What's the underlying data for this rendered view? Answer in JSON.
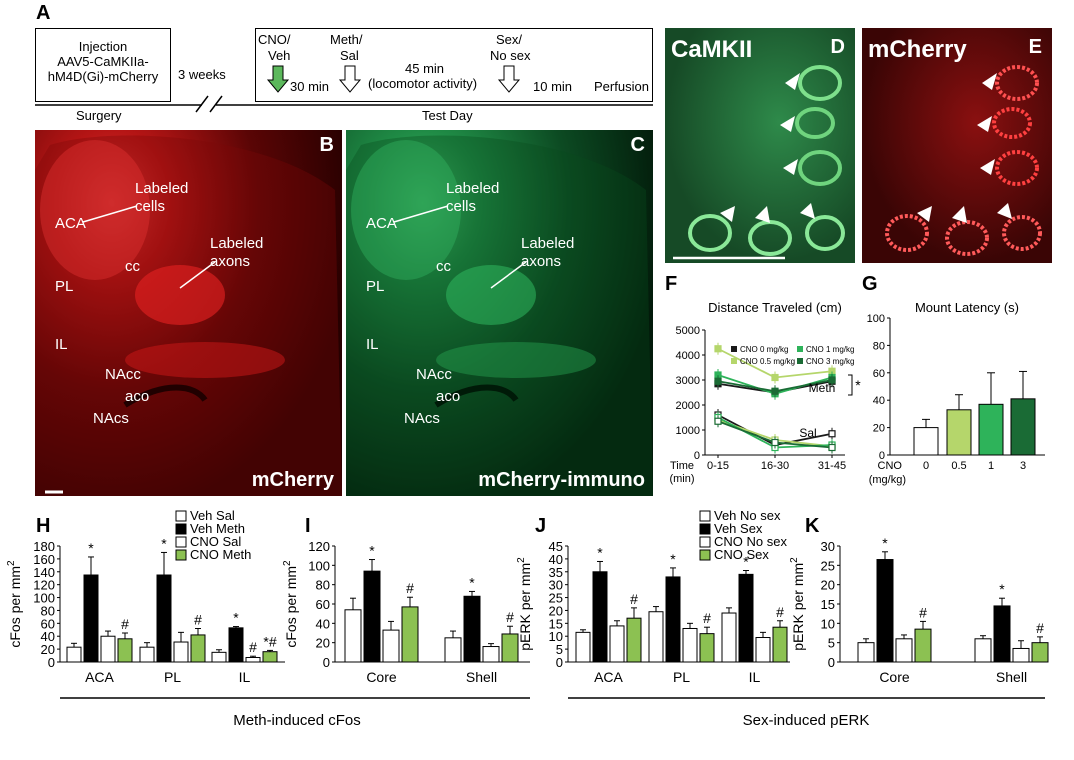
{
  "panel_letters": {
    "A": "A",
    "B": "B",
    "C": "C",
    "D": "D",
    "E": "E",
    "F": "F",
    "G": "G",
    "H": "H",
    "I": "I",
    "J": "J",
    "K": "K"
  },
  "timeline": {
    "injection_line1": "Injection",
    "injection_line2": "AAV5-CaMKIIa-",
    "injection_line3": "hM4D(Gi)-mCherry",
    "weeks": "3 weeks",
    "surgery": "Surgery",
    "test_day": "Test Day",
    "cno_line1": "CNO/",
    "cno_line2": "Veh",
    "meth_line1": "Meth/",
    "meth_line2": "Sal",
    "sex_line1": "Sex/",
    "sex_line2": "No sex",
    "min30": "30 min",
    "min45": "45 min",
    "locomotor": "(locomotor activity)",
    "min10": "10 min",
    "perfusion": "Perfusion"
  },
  "image_B": {
    "labels": {
      "labeled_cells": "Labeled\ncells",
      "labeled_axons": "Labeled\naxons",
      "aca": "ACA",
      "cc": "cc",
      "pl": "PL",
      "il": "IL",
      "nacc": "NAcc",
      "aco": "aco",
      "nacs": "NAcs"
    },
    "caption": "mCherry"
  },
  "image_C": {
    "labels": {
      "labeled_cells": "Labeled\ncells",
      "labeled_axons": "Labeled\naxons",
      "aca": "ACA",
      "cc": "cc",
      "pl": "PL",
      "il": "IL",
      "nacc": "NAcc",
      "aco": "aco",
      "nacs": "NAcs"
    },
    "caption": "mCherry-immuno"
  },
  "image_D": {
    "caption": "CaMKII"
  },
  "image_E": {
    "caption": "mCherry"
  },
  "colors": {
    "red_stain": "#c81414",
    "green_stain": "#1f9a4a",
    "black": "#000000",
    "white": "#ffffff",
    "green_bar": "#8cc152",
    "light_green": "#b5d66b",
    "mid_green": "#2eb35a",
    "dark_green": "#1a6b35"
  },
  "chart_data": [
    {
      "id": "F",
      "type": "line",
      "title": "Distance Traveled (cm)",
      "xlabel": "Time (min)",
      "x": [
        "0-15",
        "16-30",
        "31-45"
      ],
      "ylim": [
        0,
        5000
      ],
      "yticks": [
        0,
        1000,
        2000,
        3000,
        4000,
        5000
      ],
      "legend": [
        "CNO 0 mg/kg",
        "CNO 0.5 mg/kg",
        "CNO 1 mg/kg",
        "CNO 3 mg/kg"
      ],
      "annotations": [
        "Meth",
        "Sal",
        "*"
      ],
      "series": [
        {
          "name": "CNO 0 mg/kg",
          "group": "Meth",
          "values": [
            2850,
            2500,
            2950
          ],
          "color": "#1a1a1a"
        },
        {
          "name": "CNO 0.5 mg/kg",
          "group": "Meth",
          "values": [
            4250,
            3100,
            3350
          ],
          "color": "#b5d66b"
        },
        {
          "name": "CNO 1 mg/kg",
          "group": "Meth",
          "values": [
            3200,
            2450,
            3100
          ],
          "color": "#2eb35a"
        },
        {
          "name": "CNO 3 mg/kg",
          "group": "Meth",
          "values": [
            2950,
            2550,
            3000
          ],
          "color": "#1a6b35"
        },
        {
          "name": "CNO 0 mg/kg",
          "group": "Sal",
          "values": [
            1600,
            400,
            850
          ],
          "color": "#1a1a1a"
        },
        {
          "name": "CNO 0.5 mg/kg",
          "group": "Sal",
          "values": [
            1400,
            600,
            350
          ],
          "color": "#b5d66b"
        },
        {
          "name": "CNO 1 mg/kg",
          "group": "Sal",
          "values": [
            1500,
            300,
            400
          ],
          "color": "#2eb35a"
        },
        {
          "name": "CNO 3 mg/kg",
          "group": "Sal",
          "values": [
            1350,
            500,
            300
          ],
          "color": "#1a6b35"
        }
      ]
    },
    {
      "id": "G",
      "type": "bar",
      "title": "Mount Latency (s)",
      "xlabel_line1": "CNO",
      "xlabel_line2": "(mg/kg)",
      "categories": [
        "0",
        "0.5",
        "1",
        "3"
      ],
      "values": [
        20,
        33,
        37,
        41
      ],
      "errors": [
        6,
        11,
        23,
        20
      ],
      "colors": [
        "#ffffff",
        "#b5d66b",
        "#2eb35a",
        "#1a6b35"
      ],
      "ylim": [
        0,
        100
      ],
      "yticks": [
        0,
        20,
        40,
        60,
        80,
        100
      ]
    },
    {
      "id": "H",
      "type": "bar",
      "ylabel": "cFos per mm2",
      "categories": [
        "ACA",
        "PL",
        "IL"
      ],
      "ylim": [
        0,
        180
      ],
      "yticks": [
        0,
        20,
        40,
        60,
        80,
        100,
        120,
        140,
        160,
        180
      ],
      "legend": [
        "Veh Sal",
        "Veh Meth",
        "CNO Sal",
        "CNO Meth"
      ],
      "series": [
        {
          "name": "Veh Sal",
          "values": [
            23,
            23,
            15
          ],
          "errors": [
            6,
            7,
            4
          ]
        },
        {
          "name": "Veh Meth",
          "values": [
            135,
            135,
            53
          ],
          "errors": [
            28,
            35,
            2
          ]
        },
        {
          "name": "CNO Sal",
          "values": [
            40,
            31,
            7
          ],
          "errors": [
            8,
            15,
            2
          ]
        },
        {
          "name": "CNO Meth",
          "values": [
            36,
            42,
            16
          ],
          "errors": [
            9,
            10,
            2
          ]
        }
      ],
      "marks": [
        [
          "",
          "*",
          "",
          "#"
        ],
        [
          "",
          "*",
          "",
          "#"
        ],
        [
          "",
          "*",
          "#",
          "*#"
        ]
      ]
    },
    {
      "id": "I",
      "type": "bar",
      "ylabel": "cFos per mm2",
      "categories": [
        "Core",
        "Shell"
      ],
      "ylim": [
        0,
        120
      ],
      "yticks": [
        0,
        20,
        40,
        60,
        80,
        100,
        120
      ],
      "series": [
        {
          "name": "Veh Sal",
          "values": [
            54,
            25
          ],
          "errors": [
            12,
            7
          ]
        },
        {
          "name": "Veh Meth",
          "values": [
            94,
            68
          ],
          "errors": [
            12,
            5
          ]
        },
        {
          "name": "CNO Sal",
          "values": [
            33,
            16
          ],
          "errors": [
            9,
            3
          ]
        },
        {
          "name": "CNO Meth",
          "values": [
            57,
            29
          ],
          "errors": [
            10,
            8
          ]
        }
      ],
      "marks": [
        [
          "",
          "*",
          "",
          "#"
        ],
        [
          "",
          "*",
          "",
          "#"
        ]
      ]
    },
    {
      "id": "J",
      "type": "bar",
      "ylabel": "pERK per mm2",
      "categories": [
        "ACA",
        "PL",
        "IL"
      ],
      "ylim": [
        0,
        45
      ],
      "yticks": [
        0,
        5,
        10,
        15,
        20,
        25,
        30,
        35,
        40,
        45
      ],
      "legend": [
        "Veh No sex",
        "Veh Sex",
        "CNO No sex",
        "CNO Sex"
      ],
      "series": [
        {
          "name": "Veh No sex",
          "values": [
            11.5,
            19.5,
            19
          ],
          "errors": [
            1,
            2,
            2
          ]
        },
        {
          "name": "Veh Sex",
          "values": [
            35,
            33,
            34
          ],
          "errors": [
            4,
            3.5,
            1.5
          ]
        },
        {
          "name": "CNO No sex",
          "values": [
            14,
            13,
            9.5
          ],
          "errors": [
            2,
            2,
            2
          ]
        },
        {
          "name": "CNO Sex",
          "values": [
            17,
            11,
            13.5
          ],
          "errors": [
            4,
            2.5,
            2.5
          ]
        }
      ],
      "marks": [
        [
          "",
          "*",
          "",
          "#"
        ],
        [
          "",
          "*",
          "",
          "#"
        ],
        [
          "",
          "*",
          "",
          "#"
        ]
      ]
    },
    {
      "id": "K",
      "type": "bar",
      "ylabel": "pERK per mm2",
      "categories": [
        "Core",
        "Shell"
      ],
      "ylim": [
        0,
        30
      ],
      "yticks": [
        0,
        5,
        10,
        15,
        20,
        25,
        30
      ],
      "series": [
        {
          "name": "Veh No sex",
          "values": [
            5,
            6
          ],
          "errors": [
            1,
            0.8
          ]
        },
        {
          "name": "Veh Sex",
          "values": [
            26.5,
            14.5
          ],
          "errors": [
            2,
            2
          ]
        },
        {
          "name": "CNO No sex",
          "values": [
            6,
            3.5
          ],
          "errors": [
            1,
            2
          ]
        },
        {
          "name": "CNO Sex",
          "values": [
            8.5,
            5
          ],
          "errors": [
            2,
            1.5
          ]
        }
      ],
      "marks": [
        [
          "",
          "*",
          "",
          "#"
        ],
        [
          "",
          "*",
          "",
          "#"
        ]
      ]
    }
  ],
  "group_labels": {
    "meth": "Meth-induced cFos",
    "sex": "Sex-induced pERK"
  }
}
